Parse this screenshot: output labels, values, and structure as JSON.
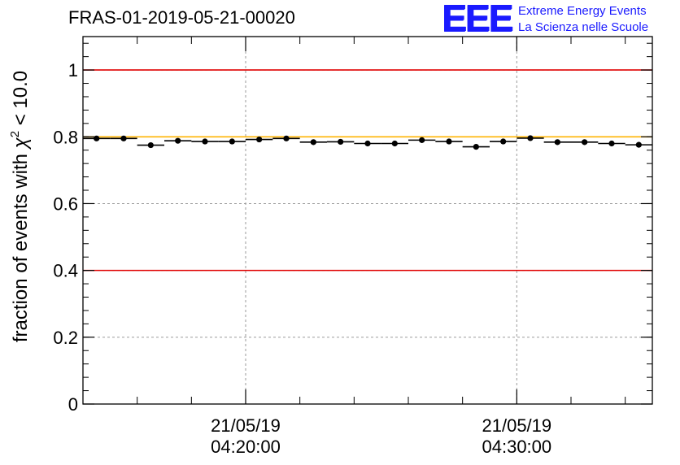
{
  "run_title": "FRAS-01-2019-05-21-00020",
  "logo": {
    "mark": "EEE",
    "line1": "Extreme Energy Events",
    "line2": "La Scienza nelle Scuole",
    "color": "#1a1aff"
  },
  "chart_data": {
    "type": "scatter",
    "title": "FRAS-01-2019-05-21-00020",
    "ylabel_prefix": "fraction of events with ",
    "ylabel_symbol": "χ",
    "ylabel_sup": "2",
    "ylabel_suffix": " < 10.0",
    "xlabel": "",
    "ylim": [
      0,
      1.1
    ],
    "yticks": [
      0,
      0.2,
      0.4,
      0.6,
      0.8,
      1
    ],
    "ytick_labels": [
      "0",
      "0.2",
      "0.4",
      "0.6",
      "0.8",
      "1"
    ],
    "xlim_minutes": [
      14,
      35
    ],
    "xticks": [
      {
        "minute": 20,
        "date": "21/05/19",
        "time": "04:20:00"
      },
      {
        "minute": 30,
        "date": "21/05/19",
        "time": "04:30:00"
      }
    ],
    "minor_tick_every_minutes": 2,
    "grid": true,
    "reference_lines": [
      {
        "y": 1.0,
        "color": "#e00000"
      },
      {
        "y": 0.8,
        "color": "#ffb400"
      },
      {
        "y": 0.4,
        "color": "#e00000"
      }
    ],
    "bin_width_minutes": 1,
    "points": [
      {
        "minute": 14.5,
        "value": 0.795
      },
      {
        "minute": 15.5,
        "value": 0.795
      },
      {
        "minute": 16.5,
        "value": 0.775
      },
      {
        "minute": 17.5,
        "value": 0.788
      },
      {
        "minute": 18.5,
        "value": 0.786
      },
      {
        "minute": 19.5,
        "value": 0.786
      },
      {
        "minute": 20.5,
        "value": 0.792
      },
      {
        "minute": 21.5,
        "value": 0.795
      },
      {
        "minute": 22.5,
        "value": 0.784
      },
      {
        "minute": 23.5,
        "value": 0.785
      },
      {
        "minute": 24.5,
        "value": 0.78
      },
      {
        "minute": 25.5,
        "value": 0.78
      },
      {
        "minute": 26.5,
        "value": 0.79
      },
      {
        "minute": 27.5,
        "value": 0.786
      },
      {
        "minute": 28.5,
        "value": 0.77
      },
      {
        "minute": 29.5,
        "value": 0.786
      },
      {
        "minute": 30.5,
        "value": 0.796
      },
      {
        "minute": 31.5,
        "value": 0.784
      },
      {
        "minute": 32.5,
        "value": 0.784
      },
      {
        "minute": 33.5,
        "value": 0.78
      },
      {
        "minute": 34.5,
        "value": 0.776
      }
    ]
  }
}
